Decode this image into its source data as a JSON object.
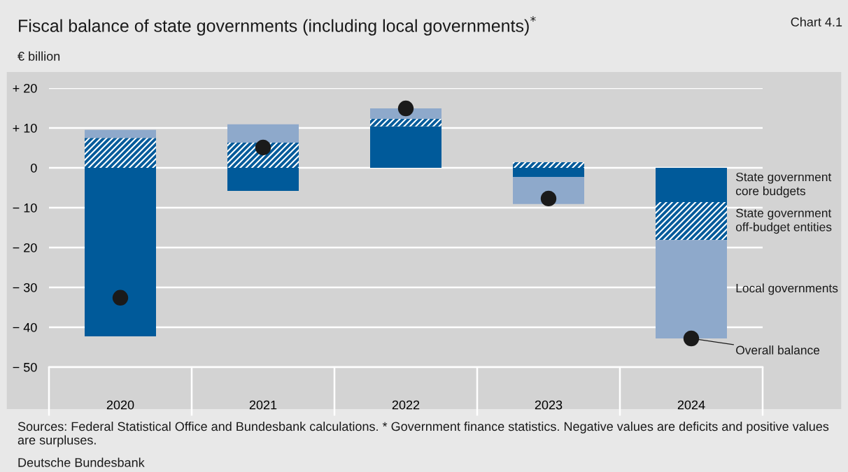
{
  "chart_data": {
    "type": "bar",
    "title": "Fiscal balance of state governments (including local governments)$^{*}$",
    "ylabel": "€ billion",
    "annotations": [
      "Chart 4.1",
      "Sources: Federal Statistical Office and Bundesbank calculations. * Government finance statistics. Negative values are deficits and positive values are surpluses.",
      "Deutsche Bundesbank"
    ],
    "categories": [
      "2020",
      "2021",
      "2022",
      "2023",
      "2024"
    ],
    "stacked": true,
    "series": [
      {
        "name": "State government\ncore budgets",
        "color": "#005a9a",
        "values": [
          -42.3,
          -5.8,
          10.4,
          -2.3,
          -8.6
        ]
      },
      {
        "name": "State government\noff-budget entities",
        "color": "#005a9a",
        "values": [
          7.5,
          6.3,
          1.9,
          1.4,
          -9.5
        ]
      },
      {
        "name": "Local governments",
        "color": "#8ea9cb",
        "values": [
          2.0,
          4.6,
          2.6,
          -6.8,
          -24.7
        ]
      },
      {
        "name": "Overall balance",
        "type": "scatter",
        "color": "#1a1a1a",
        "marker": "circle",
        "values": [
          -32.6,
          5.1,
          14.9,
          -7.7,
          -42.8
        ]
      }
    ],
    "ylim": [
      -50,
      20
    ],
    "yticks": [
      {
        "value": -50,
        "label": "− 50"
      },
      {
        "value": -40,
        "label": "− 40"
      },
      {
        "value": -30,
        "label": "− 30"
      },
      {
        "value": -20,
        "label": "− 20"
      },
      {
        "value": -10,
        "label": "− 10"
      },
      0,
      {
        "value": 10,
        "label": "+ 10"
      },
      {
        "value": 20,
        "label": "+ 20"
      }
    ],
    "grid": "y"
  }
}
